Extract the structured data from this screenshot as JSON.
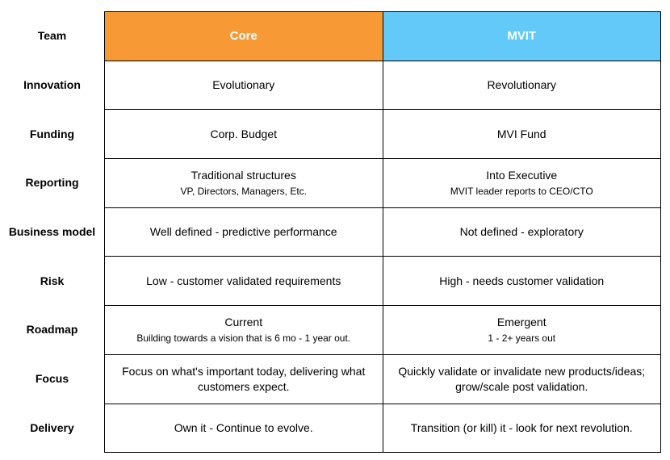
{
  "colors": {
    "core_header": "#f79a36",
    "mvit_header": "#62c9f8"
  },
  "columns": {
    "label": "Team",
    "core": "Core",
    "mvit": "MVIT"
  },
  "rows": [
    {
      "label": "Innovation",
      "core": "Evolutionary",
      "mvit": "Revolutionary"
    },
    {
      "label": "Funding",
      "core": "Corp. Budget",
      "mvit": "MVI Fund"
    },
    {
      "label": "Reporting",
      "core": "Traditional structures",
      "core_sub": "VP, Directors, Managers, Etc.",
      "mvit": "Into Executive",
      "mvit_sub": "MVIT leader reports to CEO/CTO"
    },
    {
      "label": "Business model",
      "core": "Well defined - predictive performance",
      "mvit": "Not defined - exploratory"
    },
    {
      "label": "Risk",
      "core": "Low - customer validated requirements",
      "mvit": "High - needs customer validation"
    },
    {
      "label": "Roadmap",
      "core": "Current",
      "core_sub": "Building towards a vision that is 6 mo - 1 year out.",
      "mvit": "Emergent",
      "mvit_sub": "1 - 2+ years out"
    },
    {
      "label": "Focus",
      "core": "Focus on what's important today, delivering what customers expect.",
      "mvit": "Quickly validate or invalidate new products/ideas; grow/scale post validation."
    },
    {
      "label": "Delivery",
      "core": "Own  it - Continue to evolve.",
      "mvit": "Transition (or kill) it - look for next revolution."
    }
  ]
}
